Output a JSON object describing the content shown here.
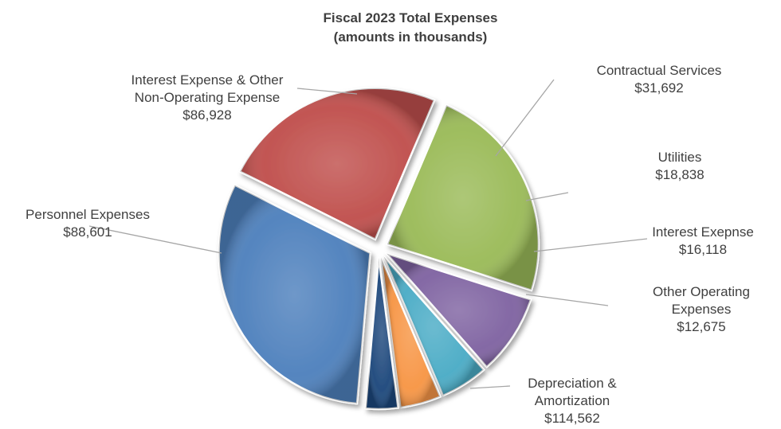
{
  "chart_data": {
    "type": "pie",
    "title": "Fiscal 2023 Total Expenses",
    "subtitle": "(amounts in thousands)",
    "exploded": true,
    "legend": "none",
    "slices": [
      {
        "label_lines": [
          "Depreciation &",
          "Amortization"
        ],
        "value": 114562,
        "display": "$114,562",
        "color": "#4F81BD"
      },
      {
        "label_lines": [
          "Personnel Expenses"
        ],
        "value": 88601,
        "display": "$88,601",
        "color": "#C0504D"
      },
      {
        "label_lines": [
          "Interest Expense & Other",
          "Non-Operating Expense"
        ],
        "value": 86928,
        "display": "$86,928",
        "color": "#9BBB59"
      },
      {
        "label_lines": [
          "Contractual Services"
        ],
        "value": 31692,
        "display": "$31,692",
        "color": "#8064A2"
      },
      {
        "label_lines": [
          "Utilities"
        ],
        "value": 18838,
        "display": "$18,838",
        "color": "#4BACC6"
      },
      {
        "label_lines": [
          "Interest Exepnse"
        ],
        "value": 16118,
        "display": "$16,118",
        "color": "#F79646"
      },
      {
        "label_lines": [
          "Other Operating",
          "Expenses"
        ],
        "value": 12675,
        "display": "$12,675",
        "color": "#1F497D"
      }
    ]
  }
}
